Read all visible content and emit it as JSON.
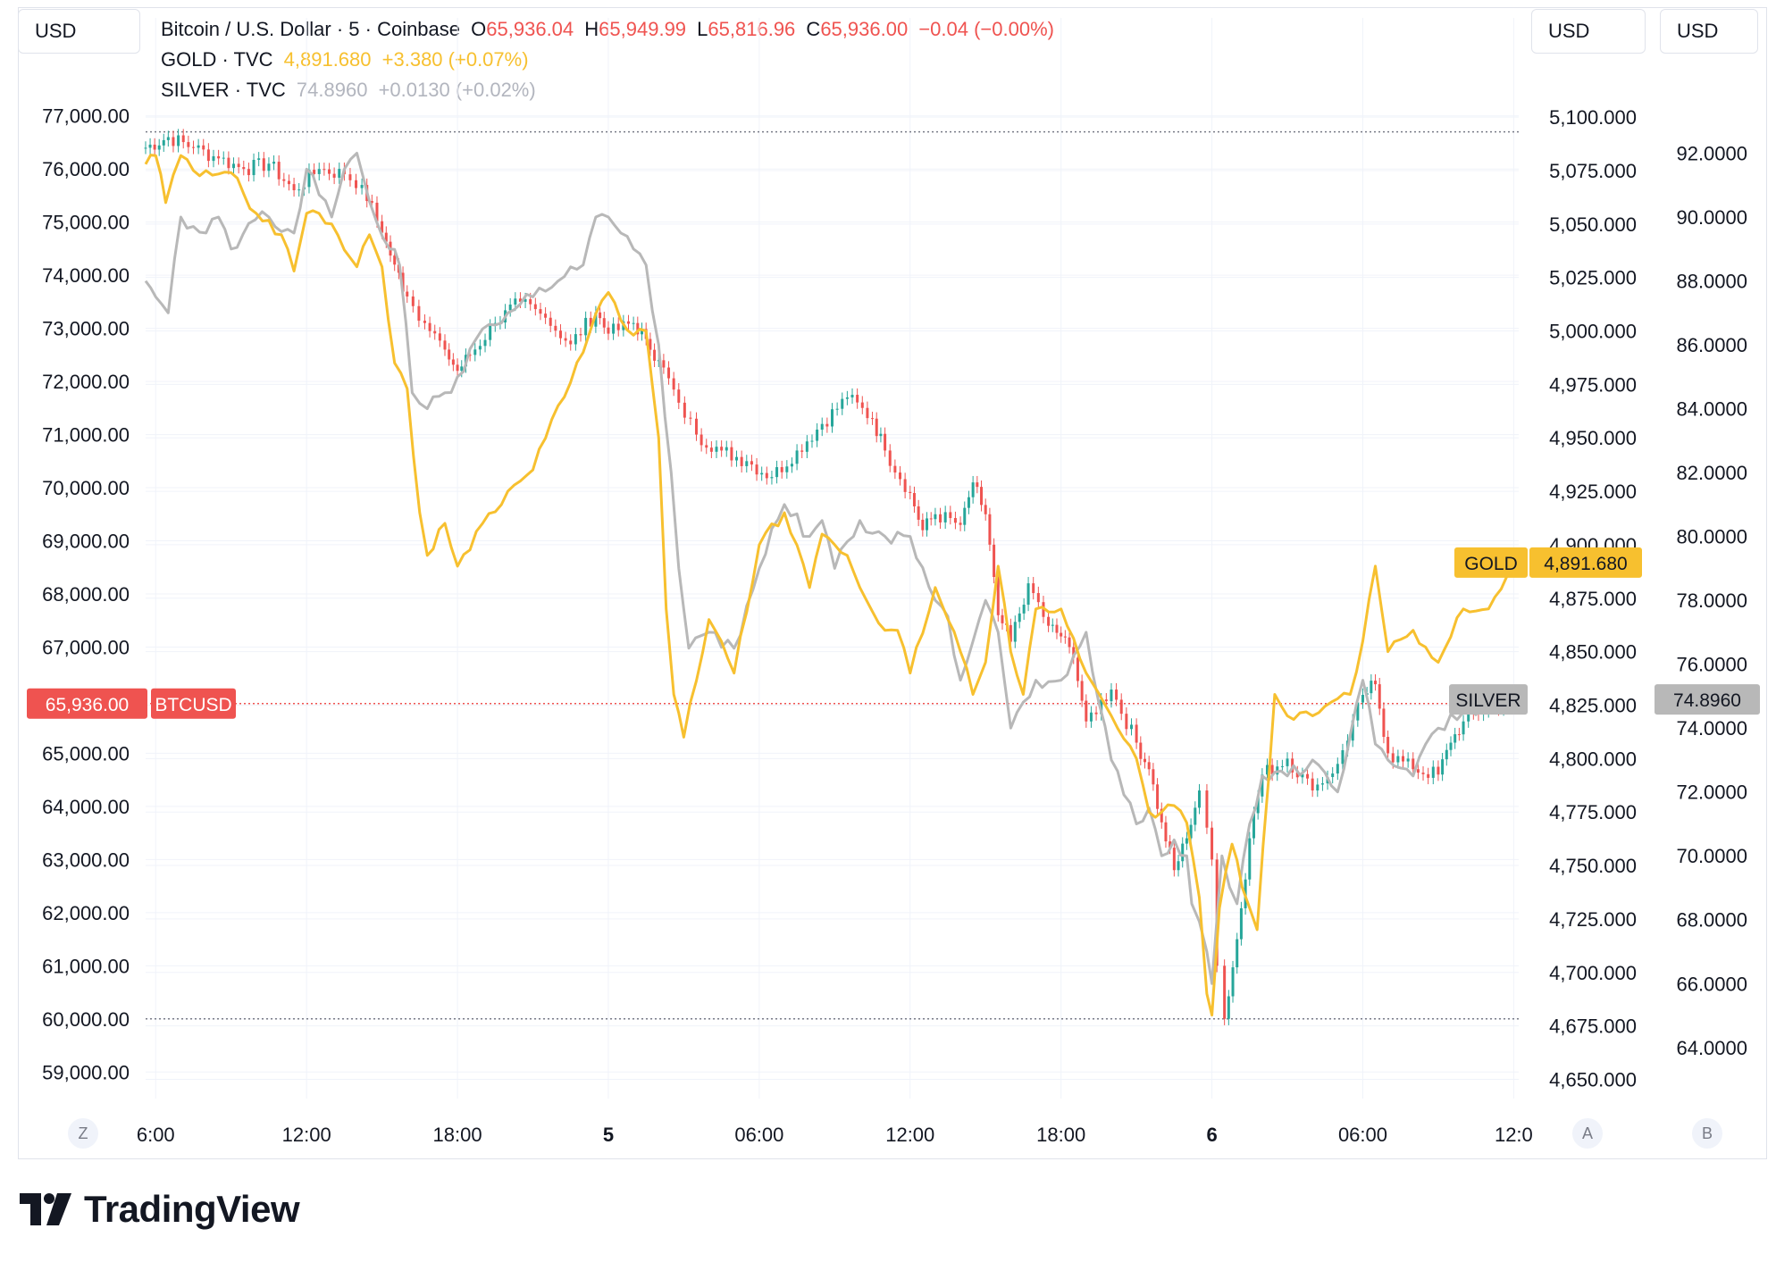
{
  "header": {
    "left_unit": "USD",
    "right_unit_1": "USD",
    "right_unit_2": "USD"
  },
  "legend": {
    "btc": {
      "name": "Bitcoin / U.S. Dollar · 5 · Coinbase",
      "o_label": "O",
      "o": "65,936.04",
      "h_label": "H",
      "h": "65,949.99",
      "l_label": "L",
      "l": "65,816.96",
      "c_label": "C",
      "c": "65,936.00",
      "change": "−0.04 (−0.00%)"
    },
    "gold": {
      "name": "GOLD · TVC",
      "value": "4,891.680",
      "change": "+3.380 (+0.07%)"
    },
    "silver": {
      "name": "SILVER · TVC",
      "value": "74.8960",
      "change": "+0.0130 (+0.02%)"
    }
  },
  "colors": {
    "btc_up": "#26a69a",
    "btc_down": "#ef5350",
    "gold": "#f7c02f",
    "silver": "#b8b8b8",
    "grid": "#f0f3fa",
    "text": "#131722"
  },
  "chart_data": {
    "type": "line",
    "x": [
      "6:00",
      "12:00",
      "18:00",
      "5",
      "06:00",
      "12:00",
      "18:00",
      "6",
      "06:00",
      "12:0"
    ],
    "x_values": [
      6,
      12,
      18,
      24,
      30,
      36,
      42,
      48,
      54,
      60
    ],
    "x_range": [
      5.6,
      60.2
    ],
    "series": [
      {
        "name": "BTCUSD",
        "axis": "left",
        "style": "candles",
        "x": [
          5.6,
          6.5,
          7.5,
          8.5,
          9.5,
          10.5,
          11.5,
          12.5,
          13.5,
          14.2,
          15,
          15.5,
          16,
          16.7,
          17.5,
          18,
          18.5,
          19.5,
          20.5,
          21.5,
          22.5,
          23.5,
          24,
          25,
          25.5,
          26,
          26.8,
          27.5,
          28.5,
          29.5,
          30.5,
          31.5,
          32.5,
          33.5,
          34.5,
          35,
          36,
          36.5,
          37,
          38,
          38.5,
          39,
          39.5,
          40,
          40.7,
          41.5,
          42,
          42.5,
          43,
          44,
          45,
          45.5,
          46,
          46.5,
          47,
          47.5,
          47.8,
          48,
          48.2,
          48.5,
          49,
          49.5,
          50,
          51,
          52,
          53,
          54,
          54.5,
          55,
          56,
          57,
          57.5,
          58,
          59,
          60
        ],
        "values": [
          76400,
          76600,
          76400,
          76200,
          76000,
          76100,
          75600,
          76000,
          75900,
          75700,
          74800,
          74200,
          73600,
          73100,
          72600,
          72200,
          72500,
          73100,
          73500,
          73200,
          72700,
          73300,
          72900,
          73100,
          72800,
          72400,
          71600,
          71000,
          70700,
          70500,
          70200,
          70700,
          71200,
          71700,
          71300,
          70700,
          69900,
          69200,
          69500,
          69300,
          70100,
          69500,
          67600,
          67100,
          68200,
          67400,
          67200,
          66800,
          65600,
          66200,
          65200,
          64700,
          63700,
          62800,
          63400,
          64300,
          63600,
          63000,
          61000,
          60000,
          61500,
          63400,
          64600,
          64900,
          64300,
          64800,
          66100,
          66300,
          65000,
          64700,
          64600,
          65200,
          65600,
          65900,
          66000
        ]
      },
      {
        "name": "GOLD",
        "axis": "right1",
        "x": [
          5.6,
          6,
          6.4,
          7,
          7.5,
          8,
          9,
          10,
          11,
          11.5,
          12,
          12.5,
          13,
          14,
          14.5,
          15,
          15.5,
          16,
          16.5,
          16.8,
          17.5,
          18,
          19,
          20,
          21,
          22,
          23,
          23.5,
          24,
          24.5,
          25,
          25.5,
          26,
          26.3,
          26.6,
          27,
          28,
          29,
          30,
          31,
          32,
          32.5,
          33,
          33.5,
          34,
          35,
          35.5,
          36,
          37,
          38,
          38.5,
          39,
          39.5,
          40,
          40.5,
          41,
          42,
          43,
          44,
          45,
          45.5,
          46,
          46.5,
          47,
          47.5,
          47.8,
          48,
          48.3,
          48.8,
          49.2,
          49.8,
          50.5,
          51,
          52,
          53,
          53.5,
          54,
          54.5,
          55,
          56,
          57,
          58,
          59,
          60
        ],
        "values": [
          5078,
          5082,
          5060,
          5082,
          5075,
          5075,
          5074,
          5055,
          5045,
          5028,
          5055,
          5055,
          5050,
          5030,
          5045,
          5030,
          4985,
          4973,
          4915,
          4895,
          4910,
          4890,
          4910,
          4925,
          4935,
          4965,
          4990,
          5008,
          5018,
          5005,
          4998,
          5000,
          4950,
          4870,
          4830,
          4810,
          4865,
          4840,
          4900,
          4915,
          4880,
          4905,
          4900,
          4895,
          4880,
          4860,
          4860,
          4840,
          4880,
          4850,
          4830,
          4845,
          4890,
          4850,
          4830,
          4870,
          4870,
          4840,
          4820,
          4800,
          4775,
          4775,
          4778,
          4770,
          4735,
          4690,
          4680,
          4730,
          4760,
          4740,
          4720,
          4830,
          4820,
          4820,
          4828,
          4830,
          4855,
          4890,
          4850,
          4860,
          4845,
          4870,
          4870,
          4892
        ]
      },
      {
        "name": "SILVER",
        "axis": "right2",
        "x": [
          5.6,
          6,
          6.5,
          7,
          8,
          8.5,
          9,
          9.7,
          10.5,
          11.5,
          12,
          13,
          13.5,
          14,
          14.5,
          15.3,
          15.7,
          16.2,
          16.8,
          17.5,
          18,
          19,
          20,
          21,
          22,
          23,
          23.5,
          24,
          24.5,
          25,
          25.5,
          26,
          26.5,
          26.8,
          27.2,
          28,
          29,
          30,
          31,
          32,
          32.5,
          33,
          34,
          35,
          36,
          37,
          37.5,
          38,
          39,
          39.5,
          40,
          41,
          42,
          43,
          44,
          45,
          45.5,
          46,
          46.5,
          47,
          47.2,
          47.8,
          48,
          48.4,
          49,
          49.5,
          50,
          51,
          52,
          53,
          54,
          54.5,
          55,
          56,
          57,
          58,
          59,
          60
        ],
        "values": [
          88,
          87.5,
          87,
          90,
          89.5,
          90,
          89,
          89.8,
          90,
          89.5,
          91.5,
          90,
          91.5,
          92,
          90.5,
          89,
          88.5,
          84.5,
          84,
          84.5,
          85,
          86.5,
          87,
          87.5,
          88,
          88.5,
          90,
          90,
          89.5,
          89,
          88.5,
          86,
          82,
          79,
          76.5,
          77,
          76.5,
          79,
          81,
          80,
          80.5,
          79,
          80.5,
          80,
          80,
          78,
          77.5,
          75.5,
          78,
          77,
          74,
          75.5,
          75.5,
          77,
          73,
          71,
          71.5,
          70,
          70.5,
          70,
          68.5,
          67,
          66,
          70,
          68.5,
          71,
          72.5,
          72.5,
          73,
          72,
          75.5,
          73.5,
          73,
          72.5,
          74,
          74.5,
          74.8,
          74.9
        ]
      }
    ],
    "axes": {
      "left": {
        "range": [
          58500,
          77500
        ],
        "ticks": [
          "77,000.00",
          "76,000.00",
          "75,000.00",
          "74,000.00",
          "73,000.00",
          "72,000.00",
          "71,000.00",
          "70,000.00",
          "69,000.00",
          "68,000.00",
          "67,000.00",
          "65,000.00",
          "64,000.00",
          "63,000.00",
          "62,000.00",
          "61,000.00",
          "60,000.00",
          "59,000.00"
        ],
        "tick_values": [
          77000,
          76000,
          75000,
          74000,
          73000,
          72000,
          71000,
          70000,
          69000,
          68000,
          67000,
          65000,
          64000,
          63000,
          62000,
          61000,
          60000,
          59000
        ]
      },
      "right1": {
        "range": [
          4641,
          5113
        ],
        "ticks": [
          "5,100.000",
          "5,075.000",
          "5,050.000",
          "5,025.000",
          "5,000.000",
          "4,975.000",
          "4,950.000",
          "4,925.000",
          "4,900.000",
          "4,875.000",
          "4,850.000",
          "4,825.000",
          "4,800.000",
          "4,775.000",
          "4,750.000",
          "4,725.000",
          "4,700.000",
          "4,675.000",
          "4,650.000"
        ],
        "tick_values": [
          5100,
          5075,
          5050,
          5025,
          5000,
          4975,
          4950,
          4925,
          4900,
          4875,
          4850,
          4825,
          4800,
          4775,
          4750,
          4725,
          4700,
          4675,
          4650
        ]
      },
      "right2": {
        "range": [
          62.4,
          94.0
        ],
        "ticks": [
          "92.0000",
          "90.0000",
          "88.0000",
          "86.0000",
          "84.0000",
          "82.0000",
          "80.0000",
          "78.0000",
          "76.0000",
          "74.0000",
          "72.0000",
          "70.0000",
          "68.0000",
          "66.0000",
          "64.0000"
        ],
        "tick_values": [
          92,
          90,
          88,
          86,
          84,
          82,
          80,
          78,
          76,
          74,
          72,
          70,
          68,
          66,
          64
        ]
      }
    },
    "price_labels": {
      "btc": {
        "value": 65936,
        "text": "65,936.00",
        "tag": "BTCUSD"
      },
      "gold": {
        "value": 4891.68,
        "text": "4,891.680",
        "tag": "GOLD"
      },
      "silver": {
        "value": 74.896,
        "text": "74.8960",
        "tag": "SILVER"
      }
    },
    "high_line": 76700,
    "low_line": 60000,
    "grid": true,
    "legend_position": "top-left"
  },
  "footer": {
    "z_button": "Z",
    "a_button": "A",
    "b_button": "B",
    "brand": "TradingView"
  }
}
